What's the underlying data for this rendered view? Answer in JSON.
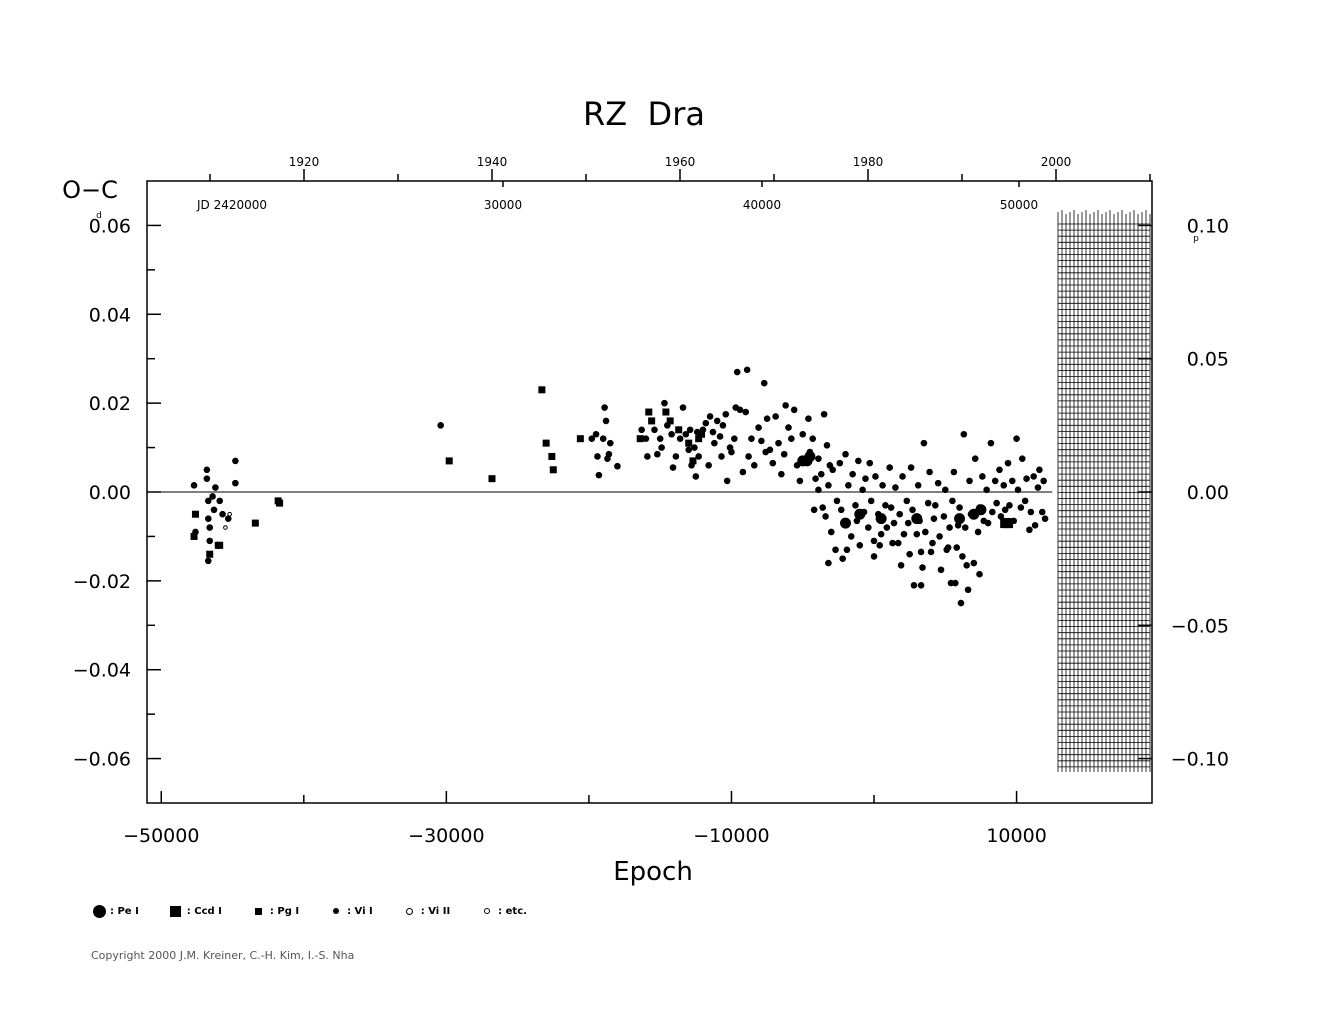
{
  "chart_data": {
    "type": "scatter",
    "title": "RZ  Dra",
    "ylabel": "O−C",
    "ylabel_unit": "d",
    "xlabel": "Epoch",
    "x_range": [
      -51000,
      19500
    ],
    "ylim": [
      -0.07,
      0.07
    ],
    "x_ticks": [
      "−50000",
      "−30000",
      "−10000",
      "10000"
    ],
    "x_tick_values": [
      -50000,
      -30000,
      -10000,
      10000
    ],
    "y_ticks": [
      "0.06",
      "0.04",
      "0.02",
      "0.00",
      "−0.02",
      "−0.04",
      "−0.06"
    ],
    "y_tick_values": [
      0.06,
      0.04,
      0.02,
      0.0,
      -0.02,
      -0.04,
      -0.06
    ],
    "right_axis": {
      "ticks": [
        "0.10",
        "0.05",
        "0.00",
        "−0.05",
        "−0.10"
      ],
      "tick_values": [
        0.1,
        0.05,
        0.0,
        -0.05,
        -0.1
      ],
      "unit": "p"
    },
    "top_axis_years": [
      "1920",
      "1940",
      "1960",
      "1980",
      "2000"
    ],
    "top_axis_year_epochs": [
      -50500,
      -37200,
      -23900,
      -10600,
      2700
    ],
    "top_axis_jd_labels": [
      "JD  2420000",
      "30000",
      "40000",
      "50000"
    ],
    "top_axis_jd_epochs": [
      -48900,
      -25800,
      -7650,
      10450
    ],
    "grid": false,
    "zero_line": true,
    "series": [
      {
        "name": "Pe I",
        "marker": "large filled circle",
        "points": [
          [
            -5000,
            0.007
          ],
          [
            -4700,
            0.007
          ],
          [
            -4500,
            0.008
          ],
          [
            -2000,
            -0.007
          ],
          [
            -1000,
            -0.005
          ],
          [
            500,
            -0.006
          ],
          [
            3000,
            -0.006
          ],
          [
            6000,
            -0.006
          ],
          [
            7000,
            -0.005
          ],
          [
            7500,
            -0.004
          ]
        ]
      },
      {
        "name": "Ccd I",
        "marker": "large filled square",
        "points": [
          [
            9200,
            -0.007
          ],
          [
            9400,
            -0.007
          ]
        ]
      },
      {
        "name": "Pg I",
        "marker": "small filled square",
        "points": [
          [
            -47600,
            -0.005
          ],
          [
            -47700,
            -0.01
          ],
          [
            -46600,
            -0.014
          ],
          [
            -45900,
            -0.012
          ],
          [
            -46000,
            -0.012
          ],
          [
            -43400,
            -0.007
          ],
          [
            -41800,
            -0.002
          ],
          [
            -41700,
            -0.0025
          ],
          [
            -29800,
            0.007
          ],
          [
            -26800,
            0.003
          ],
          [
            -23300,
            0.023
          ],
          [
            -23000,
            0.011
          ],
          [
            -22600,
            0.008
          ],
          [
            -22500,
            0.005
          ],
          [
            -20600,
            0.012
          ],
          [
            -16400,
            0.012
          ],
          [
            -15800,
            0.018
          ],
          [
            -15600,
            0.016
          ],
          [
            -14600,
            0.018
          ],
          [
            -14300,
            0.016
          ],
          [
            -13700,
            0.014
          ],
          [
            -12700,
            0.007
          ],
          [
            -12300,
            0.012
          ],
          [
            -13000,
            0.011
          ],
          [
            -12100,
            0.013
          ]
        ]
      },
      {
        "name": "Vi I",
        "marker": "small filled circle",
        "points": [
          [
            -47700,
            0.0015
          ],
          [
            -47600,
            -0.009
          ],
          [
            -46800,
            0.005
          ],
          [
            -46800,
            0.003
          ],
          [
            -46700,
            -0.002
          ],
          [
            -46700,
            -0.006
          ],
          [
            -46600,
            -0.008
          ],
          [
            -46700,
            -0.0155
          ],
          [
            -46600,
            -0.011
          ],
          [
            -46200,
            0.001
          ],
          [
            -46300,
            -0.004
          ],
          [
            -45700,
            -0.005
          ],
          [
            -45300,
            -0.006
          ],
          [
            -44800,
            0.007
          ],
          [
            -44800,
            0.002
          ],
          [
            -46400,
            -0.001
          ],
          [
            -45900,
            -0.002
          ],
          [
            -30400,
            0.015
          ],
          [
            -19800,
            0.012
          ],
          [
            -19500,
            0.013
          ],
          [
            -19400,
            0.008
          ],
          [
            -19300,
            0.0038
          ],
          [
            -18900,
            0.019
          ],
          [
            -18800,
            0.016
          ],
          [
            -18600,
            0.0085
          ],
          [
            -18500,
            0.011
          ],
          [
            -18000,
            0.0058
          ],
          [
            -19000,
            0.012
          ],
          [
            -18700,
            0.0075
          ],
          [
            -16300,
            0.014
          ],
          [
            -16000,
            0.012
          ],
          [
            -15900,
            0.008
          ],
          [
            -15400,
            0.014
          ],
          [
            -15200,
            0.0085
          ],
          [
            -15000,
            0.012
          ],
          [
            -14900,
            0.01
          ],
          [
            -14700,
            0.02
          ],
          [
            -14500,
            0.015
          ],
          [
            -14200,
            0.013
          ],
          [
            -14100,
            0.0055
          ],
          [
            -13900,
            0.008
          ],
          [
            -13600,
            0.012
          ],
          [
            -13400,
            0.019
          ],
          [
            -13200,
            0.013
          ],
          [
            -13000,
            0.0095
          ],
          [
            -12900,
            0.014
          ],
          [
            -12800,
            0.006
          ],
          [
            -12600,
            0.01
          ],
          [
            -12500,
            0.0035
          ],
          [
            -12400,
            0.0135
          ],
          [
            -12300,
            0.008
          ],
          [
            -12000,
            0.014
          ],
          [
            -11800,
            0.0155
          ],
          [
            -11600,
            0.006
          ],
          [
            -11500,
            0.017
          ],
          [
            -11300,
            0.0135
          ],
          [
            -11200,
            0.011
          ],
          [
            -11000,
            0.016
          ],
          [
            -10800,
            0.0125
          ],
          [
            -10700,
            0.008
          ],
          [
            -10600,
            0.015
          ],
          [
            -10400,
            0.0175
          ],
          [
            -10300,
            0.0025
          ],
          [
            -10100,
            0.01
          ],
          [
            -10000,
            0.009
          ],
          [
            -9800,
            0.012
          ],
          [
            -9700,
            0.019
          ],
          [
            -9600,
            0.027
          ],
          [
            -9400,
            0.0185
          ],
          [
            -9200,
            0.0045
          ],
          [
            -9000,
            0.018
          ],
          [
            -8900,
            0.0275
          ],
          [
            -8800,
            0.008
          ],
          [
            -8600,
            0.012
          ],
          [
            -8400,
            0.006
          ],
          [
            -8100,
            0.0145
          ],
          [
            -7900,
            0.0115
          ],
          [
            -7700,
            0.0245
          ],
          [
            -7600,
            0.009
          ],
          [
            -7500,
            0.0165
          ],
          [
            -7300,
            0.0095
          ],
          [
            -7100,
            0.0065
          ],
          [
            -6900,
            0.017
          ],
          [
            -6700,
            0.011
          ],
          [
            -6500,
            0.004
          ],
          [
            -6300,
            0.0085
          ],
          [
            -6200,
            0.0195
          ],
          [
            -6000,
            0.0145
          ],
          [
            -5800,
            0.012
          ],
          [
            -5600,
            0.0185
          ],
          [
            -5400,
            0.006
          ],
          [
            -5200,
            0.0025
          ],
          [
            -5000,
            0.013
          ],
          [
            -4800,
            0.0075
          ],
          [
            -4600,
            0.0165
          ],
          [
            -4500,
            0.009
          ],
          [
            -4300,
            0.012
          ],
          [
            -4100,
            0.003
          ],
          [
            -3900,
            0.0075
          ],
          [
            -3700,
            0.004
          ],
          [
            -3500,
            0.0175
          ],
          [
            -3300,
            0.0105
          ],
          [
            -3100,
            0.006
          ],
          [
            -4200,
            -0.004
          ],
          [
            -3900,
            0.0005
          ],
          [
            -3600,
            -0.0035
          ],
          [
            -3400,
            -0.0055
          ],
          [
            -3200,
            0.0015
          ],
          [
            -3000,
            -0.009
          ],
          [
            -2900,
            0.005
          ],
          [
            -2700,
            -0.013
          ],
          [
            -2600,
            -0.002
          ],
          [
            -2400,
            0.0065
          ],
          [
            -2300,
            -0.004
          ],
          [
            -2200,
            -0.015
          ],
          [
            -2000,
            0.0085
          ],
          [
            -1900,
            -0.007
          ],
          [
            -1800,
            0.0015
          ],
          [
            -1600,
            -0.01
          ],
          [
            -1500,
            0.004
          ],
          [
            -1300,
            -0.003
          ],
          [
            -1200,
            -0.0065
          ],
          [
            -1100,
            0.007
          ],
          [
            -1000,
            -0.012
          ],
          [
            -800,
            0.0005
          ],
          [
            -700,
            -0.0045
          ],
          [
            -600,
            0.003
          ],
          [
            -400,
            -0.008
          ],
          [
            -300,
            0.0065
          ],
          [
            -200,
            -0.002
          ],
          [
            0,
            -0.011
          ],
          [
            100,
            0.0035
          ],
          [
            300,
            -0.005
          ],
          [
            500,
            -0.0095
          ],
          [
            600,
            0.0015
          ],
          [
            800,
            -0.003
          ],
          [
            900,
            -0.008
          ],
          [
            1100,
            0.0055
          ],
          [
            1200,
            -0.0035
          ],
          [
            1400,
            -0.007
          ],
          [
            1500,
            0.001
          ],
          [
            1700,
            -0.0115
          ],
          [
            1800,
            -0.005
          ],
          [
            2000,
            0.0035
          ],
          [
            2100,
            -0.0095
          ],
          [
            2300,
            -0.002
          ],
          [
            2400,
            -0.007
          ],
          [
            2600,
            0.0055
          ],
          [
            2700,
            -0.004
          ],
          [
            2800,
            -0.021
          ],
          [
            3000,
            -0.0095
          ],
          [
            3100,
            0.0015
          ],
          [
            3200,
            -0.0065
          ],
          [
            3400,
            -0.017
          ],
          [
            3500,
            0.011
          ],
          [
            3600,
            -0.009
          ],
          [
            3800,
            -0.0025
          ],
          [
            3900,
            0.0045
          ],
          [
            4000,
            -0.0135
          ],
          [
            4200,
            -0.006
          ],
          [
            4300,
            -0.003
          ],
          [
            4500,
            0.002
          ],
          [
            4600,
            -0.01
          ],
          [
            4700,
            -0.0175
          ],
          [
            4900,
            -0.0055
          ],
          [
            5000,
            0.0005
          ],
          [
            5200,
            -0.0125
          ],
          [
            5300,
            -0.008
          ],
          [
            5500,
            -0.002
          ],
          [
            5600,
            0.0045
          ],
          [
            5700,
            -0.0205
          ],
          [
            5900,
            -0.0075
          ],
          [
            6000,
            -0.0035
          ],
          [
            6200,
            -0.0145
          ],
          [
            6300,
            0.013
          ],
          [
            6400,
            -0.008
          ],
          [
            6600,
            -0.022
          ],
          [
            6700,
            0.0025
          ],
          [
            6800,
            -0.005
          ],
          [
            7000,
            -0.016
          ],
          [
            7100,
            0.0075
          ],
          [
            7300,
            -0.009
          ],
          [
            7400,
            -0.0035
          ],
          [
            7600,
            0.0035
          ],
          [
            7700,
            -0.0065
          ],
          [
            7900,
            0.0005
          ],
          [
            8000,
            -0.007
          ],
          [
            8200,
            0.011
          ],
          [
            8300,
            -0.0045
          ],
          [
            8500,
            0.0025
          ],
          [
            8600,
            -0.0025
          ],
          [
            8800,
            0.005
          ],
          [
            8900,
            -0.0055
          ],
          [
            9100,
            0.0015
          ],
          [
            9200,
            -0.004
          ],
          [
            9400,
            0.0065
          ],
          [
            9500,
            -0.003
          ],
          [
            9700,
            0.0025
          ],
          [
            9800,
            -0.0065
          ],
          [
            10000,
            0.012
          ],
          [
            10100,
            0.0005
          ],
          [
            10300,
            -0.0035
          ],
          [
            10400,
            0.0075
          ],
          [
            10600,
            -0.002
          ],
          [
            10700,
            0.003
          ],
          [
            10900,
            -0.0085
          ],
          [
            11000,
            -0.0045
          ],
          [
            11200,
            0.0035
          ],
          [
            11300,
            -0.0075
          ],
          [
            11500,
            0.001
          ],
          [
            11600,
            0.005
          ],
          [
            11800,
            -0.0045
          ],
          [
            11900,
            0.0025
          ],
          [
            12000,
            -0.006
          ],
          [
            0,
            -0.0145
          ],
          [
            400,
            -0.012
          ],
          [
            1300,
            -0.0115
          ],
          [
            1900,
            -0.0165
          ],
          [
            2500,
            -0.014
          ],
          [
            3300,
            -0.0135
          ],
          [
            4100,
            -0.0115
          ],
          [
            5100,
            -0.013
          ],
          [
            5800,
            -0.0125
          ],
          [
            6500,
            -0.0165
          ],
          [
            6100,
            -0.025
          ],
          [
            5400,
            -0.0205
          ],
          [
            3300,
            -0.021
          ],
          [
            7400,
            -0.0185
          ],
          [
            -1900,
            -0.013
          ],
          [
            -3200,
            -0.016
          ]
        ]
      },
      {
        "name": "Vi II",
        "marker": "small open circle",
        "points": []
      },
      {
        "name": "etc.",
        "marker": "tiny open circle",
        "points": [
          [
            -45500,
            -0.008
          ],
          [
            -45200,
            -0.005
          ]
        ]
      }
    ],
    "legend": [
      {
        "symbol": "circle-big",
        "label": ": Pe  I"
      },
      {
        "symbol": "square-big",
        "label": ": Ccd  I"
      },
      {
        "symbol": "square-small",
        "label": ": Pg  I"
      },
      {
        "symbol": "circle-small",
        "label": ": Vi  I"
      },
      {
        "symbol": "circle-open",
        "label": ": Vi  II"
      },
      {
        "symbol": "circle-tiny",
        "label": ": etc."
      }
    ]
  },
  "copyright": "Copyright 2000 J.M. Kreiner, C.-H. Kim, I.-S. Nha"
}
